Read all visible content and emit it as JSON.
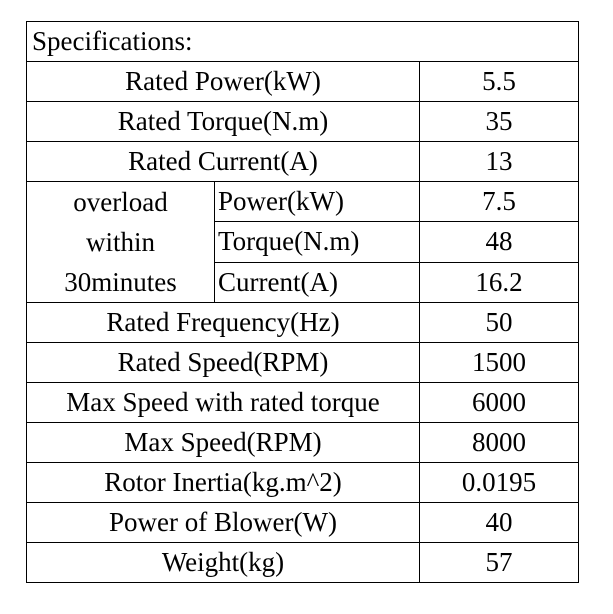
{
  "title": "Specifications:",
  "rows_top": [
    {
      "label": "Rated Power(kW)",
      "value": "5.5"
    },
    {
      "label": "Rated Torque(N.m)",
      "value": "35"
    },
    {
      "label": "Rated Current(A)",
      "value": "13"
    }
  ],
  "overload": {
    "label_lines": [
      "overload",
      "within",
      "30minutes"
    ],
    "rows": [
      {
        "label": "Power(kW)",
        "value": "7.5"
      },
      {
        "label": "Torque(N.m)",
        "value": "48"
      },
      {
        "label": "Current(A)",
        "value": "16.2"
      }
    ]
  },
  "rows_bottom": [
    {
      "label": "Rated Frequency(Hz)",
      "value": "50"
    },
    {
      "label": "Rated Speed(RPM)",
      "value": "1500"
    },
    {
      "label": "Max Speed with rated torque",
      "value": "6000"
    },
    {
      "label": "Max Speed(RPM)",
      "value": "8000"
    },
    {
      "label": "Rotor Inertia(kg.m^2)",
      "value": "0.0195"
    },
    {
      "label": "Power of Blower(W)",
      "value": "40"
    },
    {
      "label": "Weight(kg)",
      "value": "57"
    }
  ]
}
